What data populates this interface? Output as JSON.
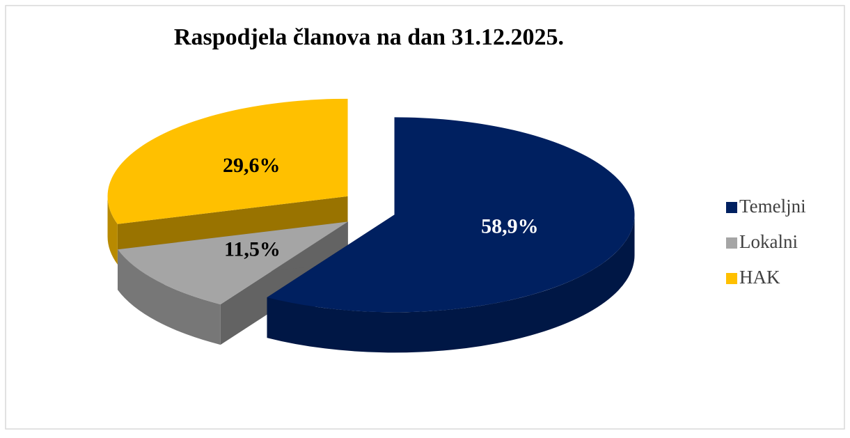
{
  "chart_data": {
    "type": "pie",
    "title": "Raspodjela članova na dan 31.12.2025.",
    "categories": [
      "Temeljni",
      "Lokalni",
      "HAK"
    ],
    "values": [
      58.9,
      11.5,
      29.6
    ],
    "value_labels": [
      "58,9%",
      "11,5%",
      "29,6%"
    ],
    "colors": [
      "#002060",
      "#a5a5a5",
      "#ffc000"
    ],
    "legend": "right"
  }
}
